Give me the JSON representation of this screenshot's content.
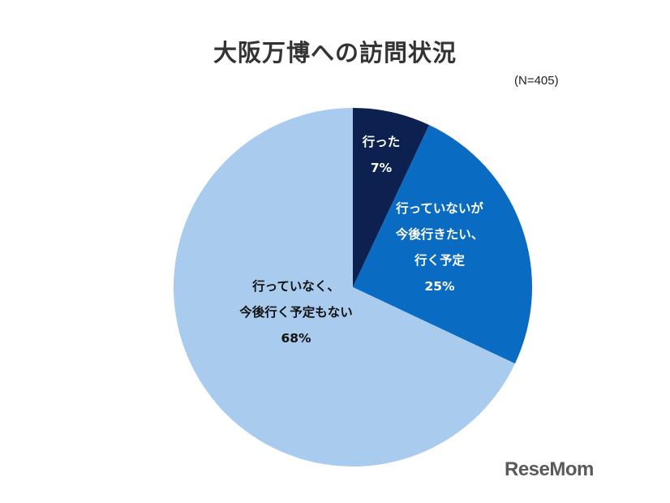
{
  "title": "大阪万博への訪問状況",
  "sample_note": "(N=405)",
  "logo_text": "ReseMom",
  "chart_data": {
    "type": "pie",
    "title": "大阪万博への訪問状況",
    "note": "(N=405)",
    "slices": [
      {
        "label_lines": [
          "行った"
        ],
        "value": 7,
        "display": "7%",
        "color": "#0c2150",
        "label_color": "#ffffff"
      },
      {
        "label_lines": [
          "行っていないが",
          "今後行きたい、",
          "行く予定"
        ],
        "value": 25,
        "display": "25%",
        "color": "#0a6bc2",
        "label_color": "#ffffff"
      },
      {
        "label_lines": [
          "行っていなく、",
          "今後行く予定もない"
        ],
        "value": 68,
        "display": "68%",
        "color": "#a9cbee",
        "label_color": "#111111"
      }
    ],
    "start_angle_deg": 0,
    "direction": "clockwise",
    "legend": "none"
  }
}
